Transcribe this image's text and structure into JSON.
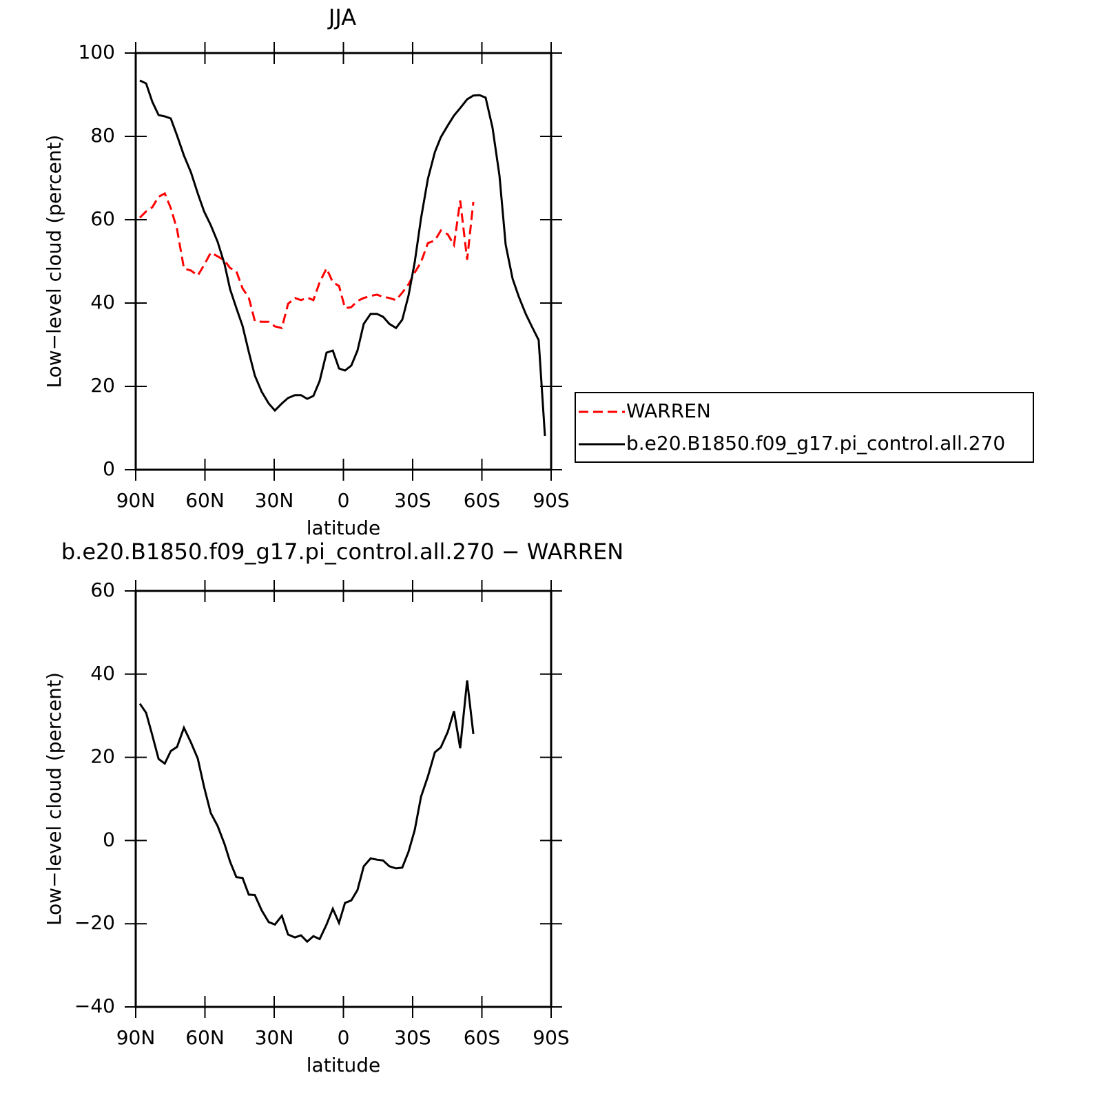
{
  "chart_data": [
    {
      "type": "line",
      "title": "JJA",
      "xlabel": "latitude",
      "ylabel": "Low−level cloud (percent)",
      "x": [
        88.2,
        85.5,
        82.8,
        80.1,
        77.4,
        74.8,
        72.1,
        69.1,
        66.1,
        63.1,
        60.4,
        57.5,
        54.5,
        51.5,
        49.1,
        46.4,
        43.7,
        41.0,
        38.4,
        35.4,
        32.4,
        29.7,
        26.7,
        24.0,
        21.0,
        18.4,
        15.7,
        13.0,
        10.3,
        7.3,
        4.6,
        1.9,
        -0.7,
        -3.4,
        -6.1,
        -8.8,
        -11.8,
        -14.5,
        -17.2,
        -19.9,
        -22.8,
        -25.5,
        -28.2,
        -30.9,
        -33.6,
        -36.6,
        -39.6,
        -42.2,
        -45.2,
        -47.9,
        -50.6,
        -53.6,
        -56.3,
        -59.0,
        -61.6,
        -64.6,
        -67.6,
        -70.3,
        -73.3,
        -76.0,
        -79.0,
        -81.6,
        -84.6,
        -87.3
      ],
      "series": [
        {
          "name": "WARREN",
          "color": "#ff0000",
          "dash": true,
          "values": [
            60.5,
            62.0,
            63.0,
            65.5,
            66.3,
            62.8,
            57.7,
            48.3,
            47.8,
            46.6,
            49.1,
            52.1,
            51.2,
            50.2,
            48.4,
            47.6,
            43.5,
            41.3,
            35.7,
            35.5,
            35.5,
            34.4,
            34.0,
            39.8,
            41.2,
            40.7,
            41.3,
            40.7,
            45.0,
            48.3,
            45.0,
            44.1,
            38.8,
            39.0,
            40.5,
            41.2,
            41.7,
            42.0,
            41.5,
            41.2,
            40.7,
            42.5,
            44.5,
            47.3,
            49.8,
            54.4,
            55.0,
            57.4,
            56.5,
            53.9,
            64.6,
            50.4,
            64.3,
            null,
            null,
            null,
            null,
            null,
            null,
            null,
            null,
            null,
            null,
            null
          ]
        },
        {
          "name": "b.e20.B1850.f09_g17.pi_control.all.270",
          "color": "#000000",
          "dash": false,
          "values": [
            93.4,
            92.7,
            88.3,
            85.1,
            84.8,
            84.3,
            80.2,
            75.4,
            71.4,
            66.3,
            62.0,
            58.7,
            54.7,
            49.3,
            43.3,
            38.8,
            34.5,
            28.3,
            22.6,
            18.7,
            15.9,
            14.2,
            15.9,
            17.2,
            17.9,
            17.9,
            17.0,
            17.7,
            21.3,
            28.1,
            28.6,
            24.3,
            23.8,
            25.0,
            28.6,
            35.0,
            37.4,
            37.4,
            36.7,
            35.0,
            34.0,
            36.0,
            41.8,
            49.8,
            60.3,
            69.8,
            76.2,
            79.8,
            82.6,
            85.0,
            86.8,
            88.9,
            89.8,
            89.9,
            89.3,
            82.1,
            70.6,
            54.0,
            45.8,
            41.5,
            37.4,
            34.4,
            31.1,
            8.1
          ]
        }
      ],
      "xlim": [
        90,
        -90
      ],
      "xticks": [
        {
          "value": 90,
          "label": "90N"
        },
        {
          "value": 60,
          "label": "60N"
        },
        {
          "value": 30,
          "label": "30N"
        },
        0,
        {
          "value": -30,
          "label": "30S"
        },
        {
          "value": -60,
          "label": "60S"
        },
        {
          "value": -90,
          "label": "90S"
        }
      ],
      "ylim": [
        0,
        100
      ],
      "yticks": [
        0,
        20,
        40,
        60,
        80,
        100
      ],
      "legend": "right"
    },
    {
      "type": "line",
      "title": "b.e20.B1850.f09_g17.pi_control.all.270 − WARREN",
      "xlabel": "latitude",
      "ylabel": "Low−level cloud (percent)",
      "x": [
        88.2,
        85.5,
        82.8,
        80.1,
        77.4,
        74.8,
        72.1,
        69.1,
        66.1,
        63.1,
        60.4,
        57.5,
        54.5,
        51.5,
        49.1,
        46.4,
        43.7,
        41.0,
        38.4,
        35.4,
        32.4,
        29.7,
        26.7,
        24.0,
        21.0,
        18.4,
        15.7,
        13.0,
        10.3,
        7.3,
        4.6,
        1.9,
        -0.7,
        -3.4,
        -6.1,
        -8.8,
        -11.8,
        -14.5,
        -17.2,
        -19.9,
        -22.8,
        -25.5,
        -28.2,
        -30.9,
        -33.6,
        -36.6,
        -39.6,
        -42.2,
        -45.2,
        -47.9,
        -50.6,
        -53.6,
        -56.3,
        -59.0,
        -61.6,
        -64.6,
        -67.6,
        -70.3,
        -73.3,
        -76.0,
        -79.0,
        -81.6,
        -84.6,
        -87.3
      ],
      "series": [
        {
          "color": "#000000",
          "dash": false,
          "values": [
            32.9,
            30.7,
            25.3,
            19.6,
            18.5,
            21.5,
            22.5,
            27.1,
            23.6,
            19.7,
            12.9,
            6.6,
            3.5,
            -0.9,
            -5.1,
            -8.8,
            -9.0,
            -13.0,
            -13.1,
            -16.8,
            -19.6,
            -20.2,
            -18.1,
            -22.6,
            -23.3,
            -22.8,
            -24.3,
            -23.0,
            -23.7,
            -20.2,
            -16.4,
            -19.8,
            -15.0,
            -14.4,
            -11.9,
            -6.2,
            -4.3,
            -4.6,
            -4.8,
            -6.2,
            -6.7,
            -6.5,
            -2.7,
            2.5,
            10.5,
            15.4,
            21.2,
            22.4,
            26.1,
            31.1,
            22.2,
            38.5,
            25.6,
            null,
            null,
            null,
            null,
            null,
            null,
            null,
            null,
            null,
            null,
            null
          ]
        }
      ],
      "xlim": [
        90,
        -90
      ],
      "xticks": [
        {
          "value": 90,
          "label": "90N"
        },
        {
          "value": 60,
          "label": "60N"
        },
        {
          "value": 30,
          "label": "30N"
        },
        0,
        {
          "value": -30,
          "label": "30S"
        },
        {
          "value": -60,
          "label": "60S"
        },
        {
          "value": -90,
          "label": "90S"
        }
      ],
      "ylim": [
        -40,
        60
      ],
      "yticks": [
        {
          "value": -40,
          "label": "−40"
        },
        {
          "value": -20,
          "label": "−20"
        },
        0,
        20,
        40,
        60
      ]
    }
  ]
}
